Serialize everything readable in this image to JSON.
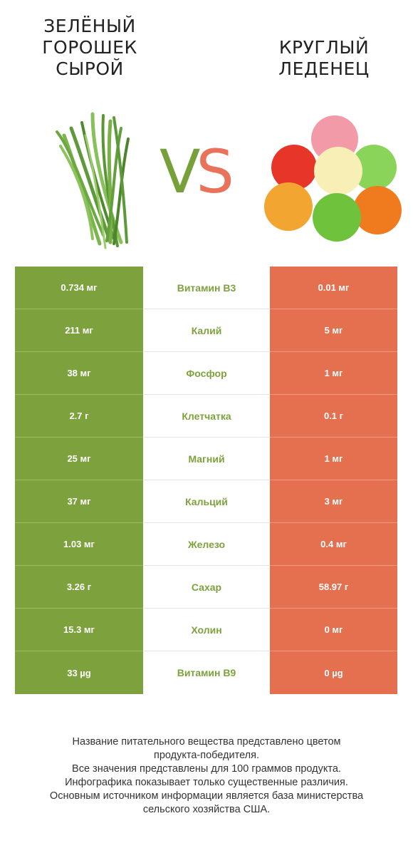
{
  "left_title": "ЗЕЛЁНЫЙ\nГОРОШЕК\nСЫРОЙ",
  "right_title": "КРУГЛЫЙ\nЛЕДЕНЕЦ",
  "vs": {
    "v": "V",
    "s": "S"
  },
  "colors": {
    "left": "#7da23d",
    "right": "#e4704f"
  },
  "left_image": "green-beans-image",
  "right_image": "gumdrops-image",
  "rows": [
    {
      "left": "0.734 мг",
      "name": "Витамин B3",
      "right": "0.01 мг"
    },
    {
      "left": "211 мг",
      "name": "Калий",
      "right": "5 мг"
    },
    {
      "left": "38 мг",
      "name": "Фосфор",
      "right": "1 мг"
    },
    {
      "left": "2.7 г",
      "name": "Клетчатка",
      "right": "0.1 г"
    },
    {
      "left": "25 мг",
      "name": "Магний",
      "right": "1 мг"
    },
    {
      "left": "37 мг",
      "name": "Кальций",
      "right": "3 мг"
    },
    {
      "left": "1.03 мг",
      "name": "Железо",
      "right": "0.4 мг"
    },
    {
      "left": "3.26 г",
      "name": "Сахар",
      "right": "58.97 г"
    },
    {
      "left": "15.3 мг",
      "name": "Холин",
      "right": "0 мг"
    },
    {
      "left": "33 µg",
      "name": "Витамин B9",
      "right": "0 µg"
    }
  ],
  "footer": [
    "Название питательного вещества представлено цветом",
    "продукта-победителя.",
    "Все значения представлены для 100 граммов продукта.",
    "Инфографика показывает только существенные различия.",
    "Основным источником информации является база министерства",
    "сельского хозяйства США."
  ]
}
